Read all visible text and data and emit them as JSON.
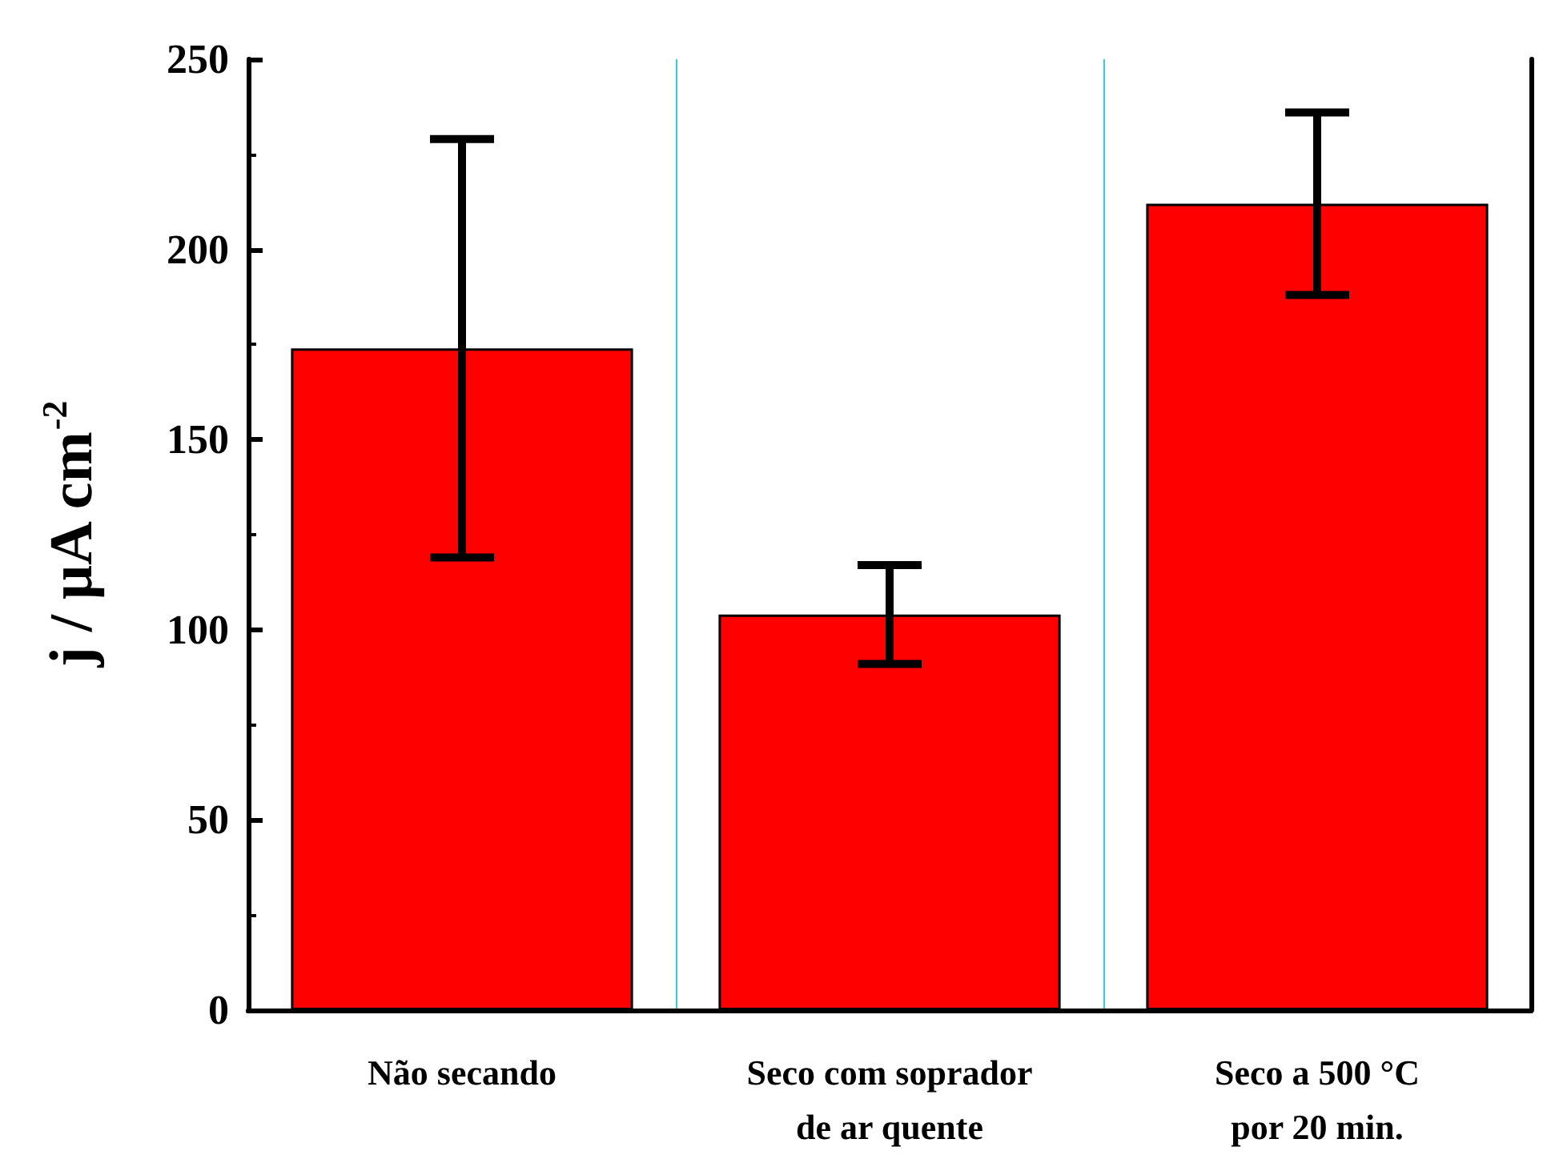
{
  "chart_data": {
    "type": "bar",
    "ylabel": "j / μA cm$^{-2}$",
    "categories": [
      "Não secando",
      "Seco com soprador\nde ar quente",
      "Seco a 500 °C\npor 20 min."
    ],
    "values": [
      174,
      104,
      212
    ],
    "errors": [
      55,
      13,
      24
    ],
    "color": "#ff0000",
    "ylim": [
      0,
      250
    ],
    "yticks": [
      0,
      50,
      100,
      150,
      200,
      250
    ],
    "grid": "x"
  }
}
